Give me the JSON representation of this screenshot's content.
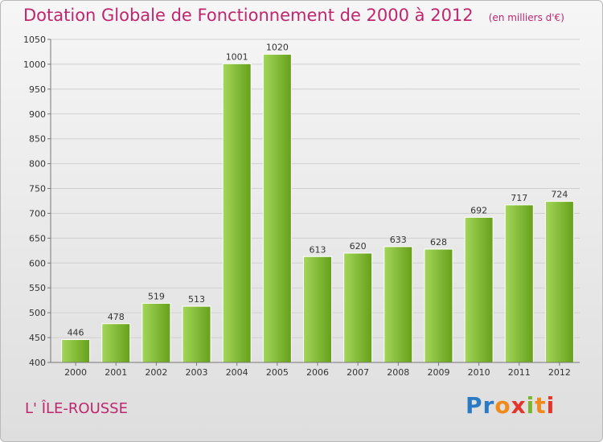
{
  "title": "Dotation Globale de Fonctionnement de 2000 à 2012",
  "subtitle": "(en milliers d'€)",
  "commune": "L' ÎLE-ROUSSE",
  "logo": {
    "text": "Proxiti",
    "letters": [
      "P",
      "r",
      "o",
      "x",
      "i",
      "t",
      "i"
    ],
    "colors": [
      "#2a7bc4",
      "#2a7bc4",
      "#f08a1c",
      "#e4352b",
      "#7bb52d",
      "#f08a1c",
      "#e4352b"
    ]
  },
  "colors": {
    "bar_light": "#a3d65a",
    "bar_dark": "#66a11a",
    "title": "#c0266e",
    "grid": "#d0d0d0"
  },
  "chart_data": {
    "type": "bar",
    "categories": [
      "2000",
      "2001",
      "2002",
      "2003",
      "2004",
      "2005",
      "2006",
      "2007",
      "2008",
      "2009",
      "2010",
      "2011",
      "2012"
    ],
    "values": [
      446,
      478,
      519,
      513,
      1001,
      1020,
      613,
      620,
      633,
      628,
      692,
      717,
      724
    ],
    "ylim": [
      400,
      1050
    ],
    "yticks": [
      400,
      450,
      500,
      550,
      600,
      650,
      700,
      750,
      800,
      850,
      900,
      950,
      1000,
      1050
    ],
    "grid": true,
    "legend": "none"
  }
}
